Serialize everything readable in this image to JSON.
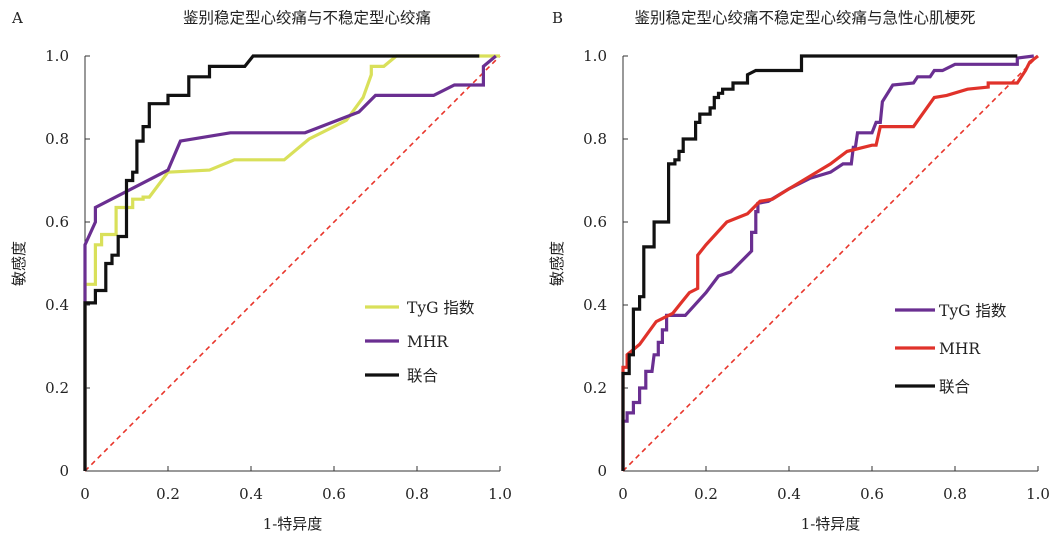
{
  "chart_data": [
    {
      "type": "line",
      "panel_label": "A",
      "title": "鉴别稳定型心绞痛与不稳定型心绞痛",
      "xlabel": "1-特异度",
      "ylabel": "敏感度",
      "xlim": [
        0,
        1.0
      ],
      "ylim": [
        0,
        1.0
      ],
      "xticks": [
        "0",
        "0.2",
        "0.4",
        "0.6",
        "0.8",
        "1.0"
      ],
      "yticks": [
        "0",
        "0.2",
        "0.4",
        "0.6",
        "0.8",
        "1.0"
      ],
      "grid": false,
      "legend_position": "bottom-right",
      "reference_line": {
        "style": "dashed",
        "color": "#e8352b",
        "from": [
          0,
          0
        ],
        "to": [
          1,
          1
        ]
      },
      "series": [
        {
          "name": "TyG 指数",
          "color": "#d9e05a",
          "points": [
            [
              0,
              0
            ],
            [
              0,
              0.45
            ],
            [
              0.025,
              0.45
            ],
            [
              0.025,
              0.545
            ],
            [
              0.04,
              0.545
            ],
            [
              0.04,
              0.57
            ],
            [
              0.075,
              0.57
            ],
            [
              0.075,
              0.635
            ],
            [
              0.115,
              0.635
            ],
            [
              0.115,
              0.655
            ],
            [
              0.14,
              0.655
            ],
            [
              0.14,
              0.66
            ],
            [
              0.155,
              0.66
            ],
            [
              0.2,
              0.72
            ],
            [
              0.3,
              0.725
            ],
            [
              0.36,
              0.75
            ],
            [
              0.48,
              0.75
            ],
            [
              0.54,
              0.8
            ],
            [
              0.63,
              0.845
            ],
            [
              0.67,
              0.9
            ],
            [
              0.69,
              0.955
            ],
            [
              0.69,
              0.975
            ],
            [
              0.72,
              0.975
            ],
            [
              0.75,
              1.0
            ],
            [
              1.0,
              1.0
            ]
          ]
        },
        {
          "name": "MHR",
          "color": "#6a2f91",
          "points": [
            [
              0,
              0
            ],
            [
              0,
              0.545
            ],
            [
              0.025,
              0.6
            ],
            [
              0.025,
              0.635
            ],
            [
              0.2,
              0.725
            ],
            [
              0.23,
              0.795
            ],
            [
              0.35,
              0.815
            ],
            [
              0.53,
              0.815
            ],
            [
              0.66,
              0.865
            ],
            [
              0.7,
              0.905
            ],
            [
              0.84,
              0.905
            ],
            [
              0.89,
              0.93
            ],
            [
              0.96,
              0.93
            ],
            [
              0.96,
              0.975
            ],
            [
              0.99,
              1.0
            ]
          ]
        },
        {
          "name": "联合",
          "color": "#111111",
          "points": [
            [
              0,
              0
            ],
            [
              0,
              0.405
            ],
            [
              0.025,
              0.405
            ],
            [
              0.025,
              0.435
            ],
            [
              0.05,
              0.435
            ],
            [
              0.05,
              0.5
            ],
            [
              0.065,
              0.5
            ],
            [
              0.065,
              0.52
            ],
            [
              0.08,
              0.52
            ],
            [
              0.08,
              0.565
            ],
            [
              0.1,
              0.565
            ],
            [
              0.1,
              0.7
            ],
            [
              0.115,
              0.7
            ],
            [
              0.115,
              0.72
            ],
            [
              0.125,
              0.72
            ],
            [
              0.125,
              0.795
            ],
            [
              0.14,
              0.795
            ],
            [
              0.14,
              0.83
            ],
            [
              0.155,
              0.83
            ],
            [
              0.155,
              0.885
            ],
            [
              0.2,
              0.885
            ],
            [
              0.2,
              0.905
            ],
            [
              0.25,
              0.905
            ],
            [
              0.25,
              0.95
            ],
            [
              0.3,
              0.95
            ],
            [
              0.3,
              0.975
            ],
            [
              0.385,
              0.975
            ],
            [
              0.405,
              1.0
            ],
            [
              0.95,
              1.0
            ]
          ]
        }
      ]
    },
    {
      "type": "line",
      "panel_label": "B",
      "title": "鉴别稳定型心绞痛不稳定型心绞痛与急性心肌梗死",
      "xlabel": "1-特异度",
      "ylabel": "敏感度",
      "xlim": [
        0,
        1.0
      ],
      "ylim": [
        0,
        1.0
      ],
      "xticks": [
        "0",
        "0.2",
        "0.4",
        "0.6",
        "0.8",
        "1.0"
      ],
      "yticks": [
        "0",
        "0.2",
        "0.4",
        "0.6",
        "0.8",
        "1.0"
      ],
      "grid": false,
      "legend_position": "bottom-right",
      "reference_line": {
        "style": "dashed",
        "color": "#e8352b",
        "from": [
          0,
          0
        ],
        "to": [
          1,
          1
        ]
      },
      "series": [
        {
          "name": "TyG 指数",
          "color": "#6a2f91",
          "points": [
            [
              0,
              0
            ],
            [
              0,
              0.12
            ],
            [
              0.01,
              0.12
            ],
            [
              0.01,
              0.14
            ],
            [
              0.025,
              0.14
            ],
            [
              0.025,
              0.165
            ],
            [
              0.04,
              0.165
            ],
            [
              0.04,
              0.2
            ],
            [
              0.055,
              0.2
            ],
            [
              0.055,
              0.24
            ],
            [
              0.07,
              0.24
            ],
            [
              0.075,
              0.28
            ],
            [
              0.085,
              0.28
            ],
            [
              0.085,
              0.31
            ],
            [
              0.095,
              0.31
            ],
            [
              0.095,
              0.34
            ],
            [
              0.105,
              0.34
            ],
            [
              0.105,
              0.375
            ],
            [
              0.15,
              0.375
            ],
            [
              0.2,
              0.43
            ],
            [
              0.23,
              0.47
            ],
            [
              0.26,
              0.48
            ],
            [
              0.31,
              0.53
            ],
            [
              0.31,
              0.575
            ],
            [
              0.32,
              0.575
            ],
            [
              0.32,
              0.625
            ],
            [
              0.325,
              0.625
            ],
            [
              0.325,
              0.645
            ],
            [
              0.35,
              0.65
            ],
            [
              0.4,
              0.68
            ],
            [
              0.45,
              0.705
            ],
            [
              0.5,
              0.72
            ],
            [
              0.53,
              0.74
            ],
            [
              0.55,
              0.74
            ],
            [
              0.555,
              0.78
            ],
            [
              0.56,
              0.78
            ],
            [
              0.565,
              0.815
            ],
            [
              0.6,
              0.815
            ],
            [
              0.61,
              0.84
            ],
            [
              0.62,
              0.84
            ],
            [
              0.625,
              0.89
            ],
            [
              0.65,
              0.93
            ],
            [
              0.7,
              0.935
            ],
            [
              0.71,
              0.95
            ],
            [
              0.74,
              0.95
            ],
            [
              0.75,
              0.965
            ],
            [
              0.77,
              0.965
            ],
            [
              0.8,
              0.98
            ],
            [
              0.95,
              0.98
            ],
            [
              0.95,
              0.995
            ],
            [
              0.99,
              1.0
            ]
          ]
        },
        {
          "name": "MHR",
          "color": "#e0322a",
          "points": [
            [
              0,
              0
            ],
            [
              0,
              0.25
            ],
            [
              0.01,
              0.25
            ],
            [
              0.01,
              0.28
            ],
            [
              0.04,
              0.305
            ],
            [
              0.08,
              0.36
            ],
            [
              0.12,
              0.38
            ],
            [
              0.14,
              0.405
            ],
            [
              0.16,
              0.43
            ],
            [
              0.18,
              0.44
            ],
            [
              0.18,
              0.52
            ],
            [
              0.2,
              0.545
            ],
            [
              0.25,
              0.6
            ],
            [
              0.3,
              0.62
            ],
            [
              0.33,
              0.65
            ],
            [
              0.36,
              0.655
            ],
            [
              0.4,
              0.68
            ],
            [
              0.5,
              0.74
            ],
            [
              0.54,
              0.77
            ],
            [
              0.6,
              0.785
            ],
            [
              0.61,
              0.785
            ],
            [
              0.62,
              0.83
            ],
            [
              0.7,
              0.83
            ],
            [
              0.75,
              0.9
            ],
            [
              0.78,
              0.905
            ],
            [
              0.83,
              0.92
            ],
            [
              0.88,
              0.925
            ],
            [
              0.88,
              0.935
            ],
            [
              0.95,
              0.935
            ],
            [
              0.97,
              0.965
            ],
            [
              0.98,
              0.985
            ],
            [
              1.0,
              1.0
            ]
          ]
        },
        {
          "name": "联合",
          "color": "#111111",
          "points": [
            [
              0,
              0
            ],
            [
              0,
              0.235
            ],
            [
              0.015,
              0.235
            ],
            [
              0.015,
              0.28
            ],
            [
              0.025,
              0.28
            ],
            [
              0.025,
              0.39
            ],
            [
              0.04,
              0.39
            ],
            [
              0.04,
              0.42
            ],
            [
              0.05,
              0.42
            ],
            [
              0.05,
              0.54
            ],
            [
              0.075,
              0.54
            ],
            [
              0.075,
              0.6
            ],
            [
              0.11,
              0.6
            ],
            [
              0.11,
              0.74
            ],
            [
              0.125,
              0.74
            ],
            [
              0.125,
              0.75
            ],
            [
              0.135,
              0.75
            ],
            [
              0.135,
              0.77
            ],
            [
              0.145,
              0.77
            ],
            [
              0.145,
              0.8
            ],
            [
              0.175,
              0.8
            ],
            [
              0.175,
              0.84
            ],
            [
              0.185,
              0.84
            ],
            [
              0.185,
              0.86
            ],
            [
              0.21,
              0.86
            ],
            [
              0.21,
              0.875
            ],
            [
              0.22,
              0.875
            ],
            [
              0.22,
              0.9
            ],
            [
              0.23,
              0.9
            ],
            [
              0.23,
              0.91
            ],
            [
              0.24,
              0.91
            ],
            [
              0.24,
              0.92
            ],
            [
              0.265,
              0.92
            ],
            [
              0.265,
              0.935
            ],
            [
              0.3,
              0.935
            ],
            [
              0.3,
              0.955
            ],
            [
              0.32,
              0.965
            ],
            [
              0.43,
              0.965
            ],
            [
              0.43,
              1.0
            ],
            [
              0.95,
              1.0
            ]
          ]
        }
      ]
    }
  ]
}
